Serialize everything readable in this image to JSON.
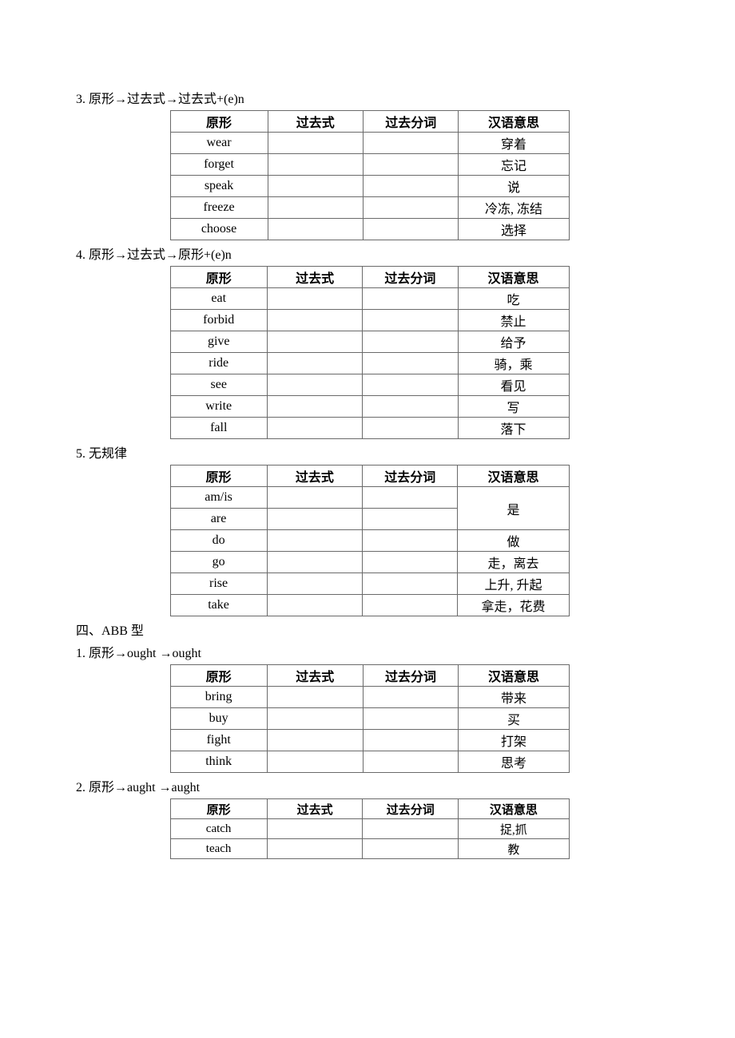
{
  "headers": {
    "base": "原形",
    "past": "过去式",
    "participle": "过去分词",
    "meaning": "汉语意思"
  },
  "sections": [
    {
      "label": "3.  原形→过去式→过去式+(e)n",
      "rows": [
        {
          "base": "wear",
          "meaning": "穿着"
        },
        {
          "base": "forget",
          "meaning": "忘记"
        },
        {
          "base": "speak",
          "meaning": "说"
        },
        {
          "base": "freeze",
          "meaning": "冷冻, 冻结"
        },
        {
          "base": "choose",
          "meaning": "选择"
        }
      ]
    },
    {
      "label": "4.  原形→过去式→原形+(e)n",
      "rows": [
        {
          "base": "eat",
          "meaning": "吃"
        },
        {
          "base": "forbid",
          "meaning": "禁止"
        },
        {
          "base": "give",
          "meaning": "给予"
        },
        {
          "base": "ride",
          "meaning": "骑，乘"
        },
        {
          "base": "see",
          "meaning": "看见"
        },
        {
          "base": "write",
          "meaning": "写"
        },
        {
          "base": "fall",
          "meaning": "落下"
        }
      ]
    },
    {
      "label": "5.  无规律",
      "rows": [
        {
          "base": "am/is",
          "meaning": "是",
          "mergeMeaning": 2
        },
        {
          "base": "are"
        },
        {
          "base": "do",
          "meaning": "做"
        },
        {
          "base": "go",
          "meaning": "走，离去"
        },
        {
          "base": "rise",
          "meaning": "上升, 升起"
        },
        {
          "base": "take",
          "meaning": "拿走，花费"
        }
      ]
    }
  ],
  "abbHeading": "四、ABB 型",
  "abbSections": [
    {
      "label": "1.  原形→ought  →ought",
      "rows": [
        {
          "base": "bring",
          "meaning": "带来"
        },
        {
          "base": "buy",
          "meaning": "买"
        },
        {
          "base": "fight",
          "meaning": "打架"
        },
        {
          "base": "think",
          "meaning": "思考"
        }
      ]
    },
    {
      "label": "2.  原形→aught  →aught",
      "small": true,
      "rows": [
        {
          "base": "catch",
          "meaning": "捉,抓"
        },
        {
          "base": "teach",
          "meaning": "教"
        }
      ]
    }
  ]
}
